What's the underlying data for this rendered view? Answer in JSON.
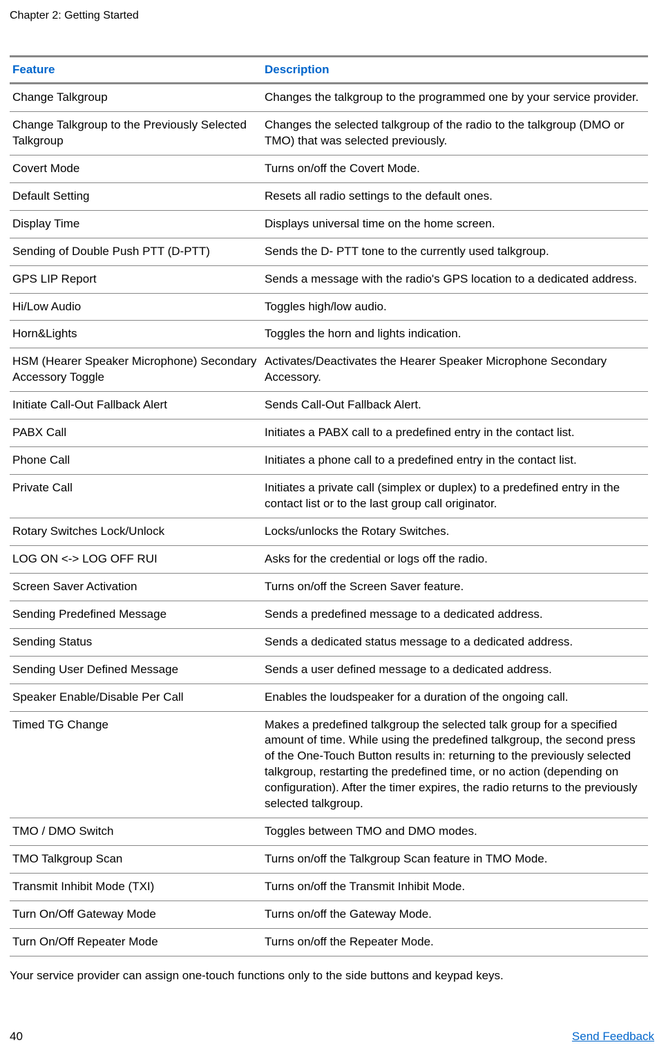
{
  "header": {
    "chapter": "Chapter 2: Getting Started"
  },
  "table": {
    "columns": {
      "feature": "Feature",
      "description": "Description"
    },
    "header_color": "#0066cc",
    "border_color": "#888888",
    "rows": [
      {
        "feature": "Change Talkgroup",
        "description": "Changes the talkgroup to the programmed one by your service provider."
      },
      {
        "feature": "Change Talkgroup to the Previously Selected Talkgroup",
        "description": "Changes the selected talkgroup of the radio to the talkgroup (DMO or TMO) that was selected previously."
      },
      {
        "feature": "Covert Mode",
        "description": "Turns on/off the Covert Mode."
      },
      {
        "feature": "Default Setting",
        "description": "Resets all radio settings to the default ones."
      },
      {
        "feature": "Display Time",
        "description": "Displays universal time on the home screen."
      },
      {
        "feature": "Sending of Double Push PTT (D-PTT)",
        "description": "Sends the D- PTT tone to the currently used talkgroup."
      },
      {
        "feature": "GPS LIP Report",
        "description": "Sends a message with the radio's GPS location to a dedicated address."
      },
      {
        "feature": "Hi/Low Audio",
        "description": "Toggles high/low audio."
      },
      {
        "feature": "Horn&Lights",
        "description": "Toggles the horn and lights indication."
      },
      {
        "feature": "HSM (Hearer Speaker Microphone) Secondary Accessory Toggle",
        "description": "Activates/Deactivates the Hearer Speaker Microphone Secondary Accessory."
      },
      {
        "feature": "Initiate Call-Out Fallback Alert",
        "description": "Sends Call-Out Fallback Alert."
      },
      {
        "feature": "PABX Call",
        "description": "Initiates a PABX call to a predefined entry in the contact list."
      },
      {
        "feature": "Phone Call",
        "description": "Initiates a phone call to a predefined entry in the contact list."
      },
      {
        "feature": "Private Call",
        "description": "Initiates a private call (simplex or duplex) to a predefined entry in the contact list or to the last group call originator."
      },
      {
        "feature": "Rotary Switches Lock/Unlock",
        "description": "Locks/unlocks the Rotary Switches."
      },
      {
        "feature": "LOG ON <-> LOG OFF RUI",
        "description": "Asks for the credential or logs off the radio."
      },
      {
        "feature": "Screen Saver Activation",
        "description": "Turns on/off the Screen Saver feature."
      },
      {
        "feature": "Sending Predefined Message",
        "description": "Sends a predefined message to a dedicated address."
      },
      {
        "feature": "Sending Status",
        "description": "Sends a dedicated status message to a dedicated address."
      },
      {
        "feature": "Sending User Defined Message",
        "description": "Sends a user defined message to a dedicated address."
      },
      {
        "feature": "Speaker Enable/Disable Per Call",
        "description": "Enables the loudspeaker for a duration of the ongoing call."
      },
      {
        "feature": "Timed TG Change",
        "description": "Makes a predefined talkgroup the selected talk group for a specified amount of time. While using the predefined talkgroup, the second press of the One-Touch Button results in: returning to the previously selected talkgroup, restarting the predefined time, or no action (depending on configuration). After the timer expires, the radio returns to the previously selected talkgroup."
      },
      {
        "feature": "TMO / DMO Switch",
        "description": "Toggles between TMO and DMO modes."
      },
      {
        "feature": "TMO Talkgroup Scan",
        "description": "Turns on/off the Talkgroup Scan feature in TMO Mode."
      },
      {
        "feature": "Transmit Inhibit Mode (TXI)",
        "description": "Turns on/off the Transmit Inhibit Mode."
      },
      {
        "feature": "Turn On/Off Gateway Mode",
        "description": "Turns on/off the Gateway Mode."
      },
      {
        "feature": "Turn On/Off Repeater Mode",
        "description": "Turns on/off the Repeater Mode."
      }
    ]
  },
  "footer_note": "Your service provider can assign one-touch functions only to the side buttons and keypad keys.",
  "footer": {
    "page_number": "40",
    "feedback_link": "Send Feedback"
  }
}
